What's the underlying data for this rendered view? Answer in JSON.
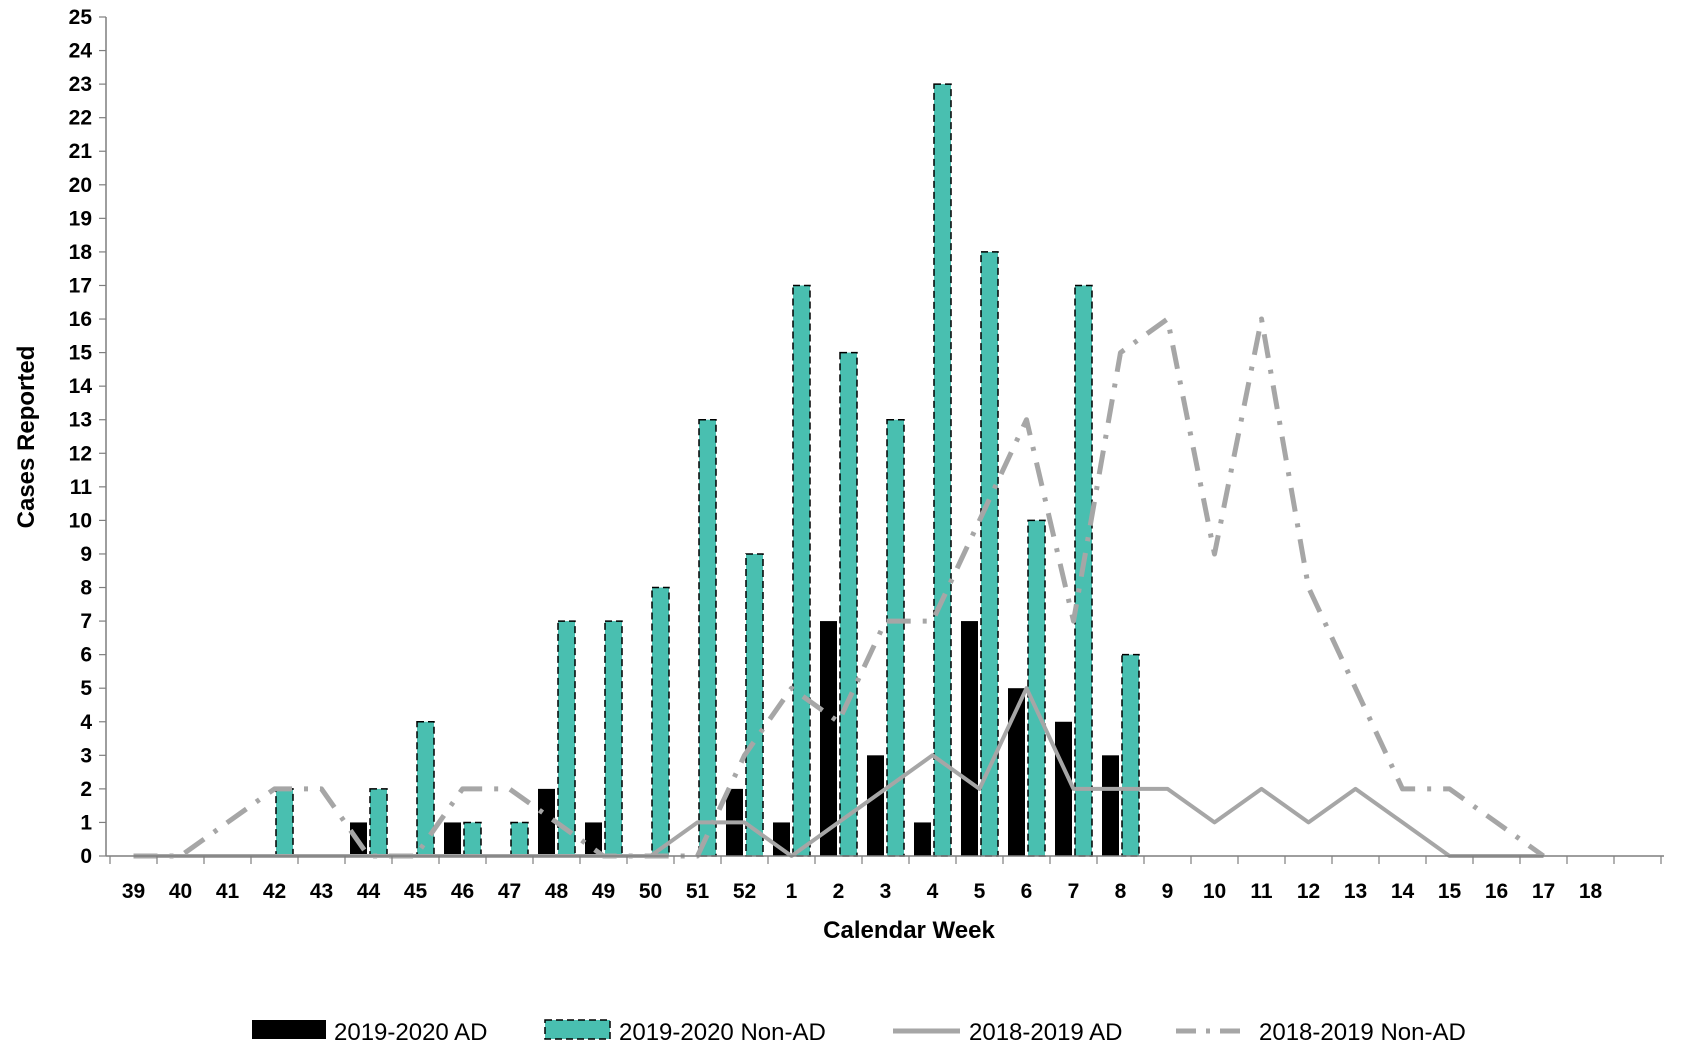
{
  "chart_data": {
    "type": "bar",
    "title": "",
    "xlabel": "Calendar Week",
    "ylabel": "Cases Reported",
    "ylim": [
      0,
      25
    ],
    "y_ticks": [
      "0",
      "1",
      "2",
      "3",
      "4",
      "5",
      "6",
      "7",
      "8",
      "9",
      "10",
      "11",
      "12",
      "13",
      "14",
      "15",
      "16",
      "17",
      "18",
      "19",
      "20",
      "21",
      "22",
      "23",
      "24",
      "25"
    ],
    "categories": [
      "39",
      "40",
      "41",
      "42",
      "43",
      "44",
      "45",
      "46",
      "47",
      "48",
      "49",
      "50",
      "51",
      "52",
      "1",
      "2",
      "3",
      "4",
      "5",
      "6",
      "7",
      "8",
      "9",
      "10",
      "11",
      "12",
      "13",
      "14",
      "15",
      "16",
      "17",
      "18"
    ],
    "grid": false,
    "legend_position": "bottom",
    "series": [
      {
        "name": "2019-2020 AD",
        "kind": "bar",
        "color": "#000000",
        "values": [
          0,
          0,
          0,
          0,
          0,
          1,
          0,
          1,
          0,
          2,
          1,
          0,
          0,
          2,
          1,
          7,
          3,
          1,
          7,
          5,
          4,
          3,
          null,
          null,
          null,
          null,
          null,
          null,
          null,
          null,
          null,
          null
        ]
      },
      {
        "name": "2019-2020 Non-AD",
        "kind": "bar",
        "color": "#49BFB0",
        "values": [
          0,
          0,
          0,
          2,
          0,
          2,
          4,
          1,
          1,
          7,
          7,
          8,
          13,
          9,
          17,
          15,
          13,
          23,
          18,
          10,
          17,
          6,
          null,
          null,
          null,
          null,
          null,
          null,
          null,
          null,
          null,
          null
        ]
      },
      {
        "name": "2018-2019 AD",
        "kind": "line",
        "style": "solid",
        "color": "#A6A6A6",
        "values": [
          0,
          0,
          0,
          0,
          0,
          0,
          0,
          0,
          0,
          0,
          0,
          0,
          1,
          1,
          0,
          1,
          2,
          3,
          2,
          5,
          2,
          2,
          2,
          1,
          2,
          1,
          2,
          1,
          0,
          0,
          0,
          null
        ]
      },
      {
        "name": "2018-2019 Non-AD",
        "kind": "line",
        "style": "dash-dot",
        "color": "#A6A6A6",
        "values": [
          0,
          0,
          1,
          2,
          2,
          0,
          0,
          2,
          2,
          1,
          0,
          0,
          0,
          3,
          5,
          4,
          7,
          7,
          10,
          13,
          7,
          15,
          16,
          9,
          16,
          8,
          5,
          2,
          2,
          1,
          0,
          null
        ]
      }
    ]
  }
}
